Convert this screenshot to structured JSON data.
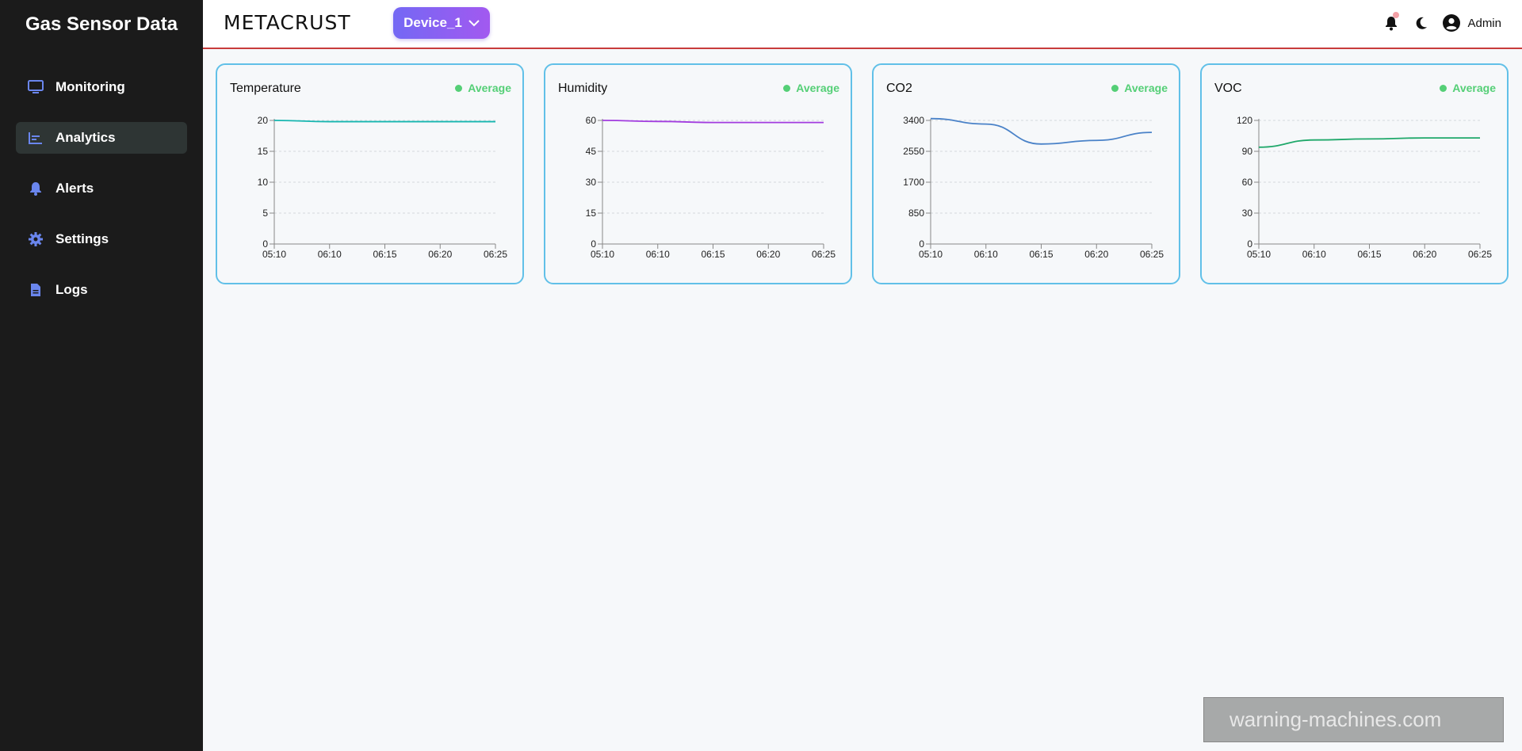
{
  "sidebar": {
    "title": "Gas Sensor Data",
    "items": [
      {
        "label": "Monitoring",
        "icon": "monitor-icon"
      },
      {
        "label": "Analytics",
        "icon": "bar-chart-icon",
        "active": true
      },
      {
        "label": "Alerts",
        "icon": "bell-icon"
      },
      {
        "label": "Settings",
        "icon": "gear-icon"
      },
      {
        "label": "Logs",
        "icon": "file-icon"
      }
    ]
  },
  "header": {
    "logo_text": "METACRUST",
    "device_selector": "Device_1",
    "user_label": "Admin"
  },
  "colors": {
    "accent": "#6f6cf2",
    "card_border": "#61c0e8",
    "status_green": "#54cf76",
    "topbar_border": "#c83c3c"
  },
  "watermark": "warning-machines.com",
  "chart_data": [
    {
      "type": "line",
      "title": "Temperature",
      "badge": "Average",
      "color": "#17b6b0",
      "x": [
        "05:10",
        "06:10",
        "06:15",
        "06:20",
        "06:25"
      ],
      "series": [
        {
          "values": [
            20,
            19.8,
            19.8,
            19.8,
            19.8
          ]
        }
      ],
      "yticks": [
        0,
        5,
        10,
        15,
        20
      ],
      "ylim": [
        0,
        20
      ],
      "grid": true
    },
    {
      "type": "line",
      "title": "Humidity",
      "badge": "Average",
      "color": "#a23cdf",
      "x": [
        "05:10",
        "06:10",
        "06:15",
        "06:20",
        "06:25"
      ],
      "series": [
        {
          "values": [
            60,
            59.5,
            59,
            59,
            59
          ]
        }
      ],
      "yticks": [
        0,
        15,
        30,
        45,
        60
      ],
      "ylim": [
        0,
        60
      ],
      "grid": true
    },
    {
      "type": "line",
      "title": "CO2",
      "badge": "Average",
      "color": "#4a82c8",
      "x": [
        "05:10",
        "06:10",
        "06:15",
        "06:20",
        "06:25"
      ],
      "series": [
        {
          "values": [
            3450,
            3300,
            2750,
            2850,
            3070
          ]
        }
      ],
      "yticks": [
        0,
        850,
        1700,
        2550,
        3400
      ],
      "ylim": [
        0,
        3400
      ],
      "grid": true
    },
    {
      "type": "line",
      "title": "VOC",
      "badge": "Average",
      "color": "#1fa86a",
      "x": [
        "05:10",
        "06:10",
        "06:15",
        "06:20",
        "06:25"
      ],
      "series": [
        {
          "values": [
            94,
            101,
            102,
            103,
            103
          ]
        }
      ],
      "yticks": [
        0,
        30,
        60,
        90,
        120
      ],
      "ylim": [
        0,
        120
      ],
      "grid": true
    }
  ]
}
